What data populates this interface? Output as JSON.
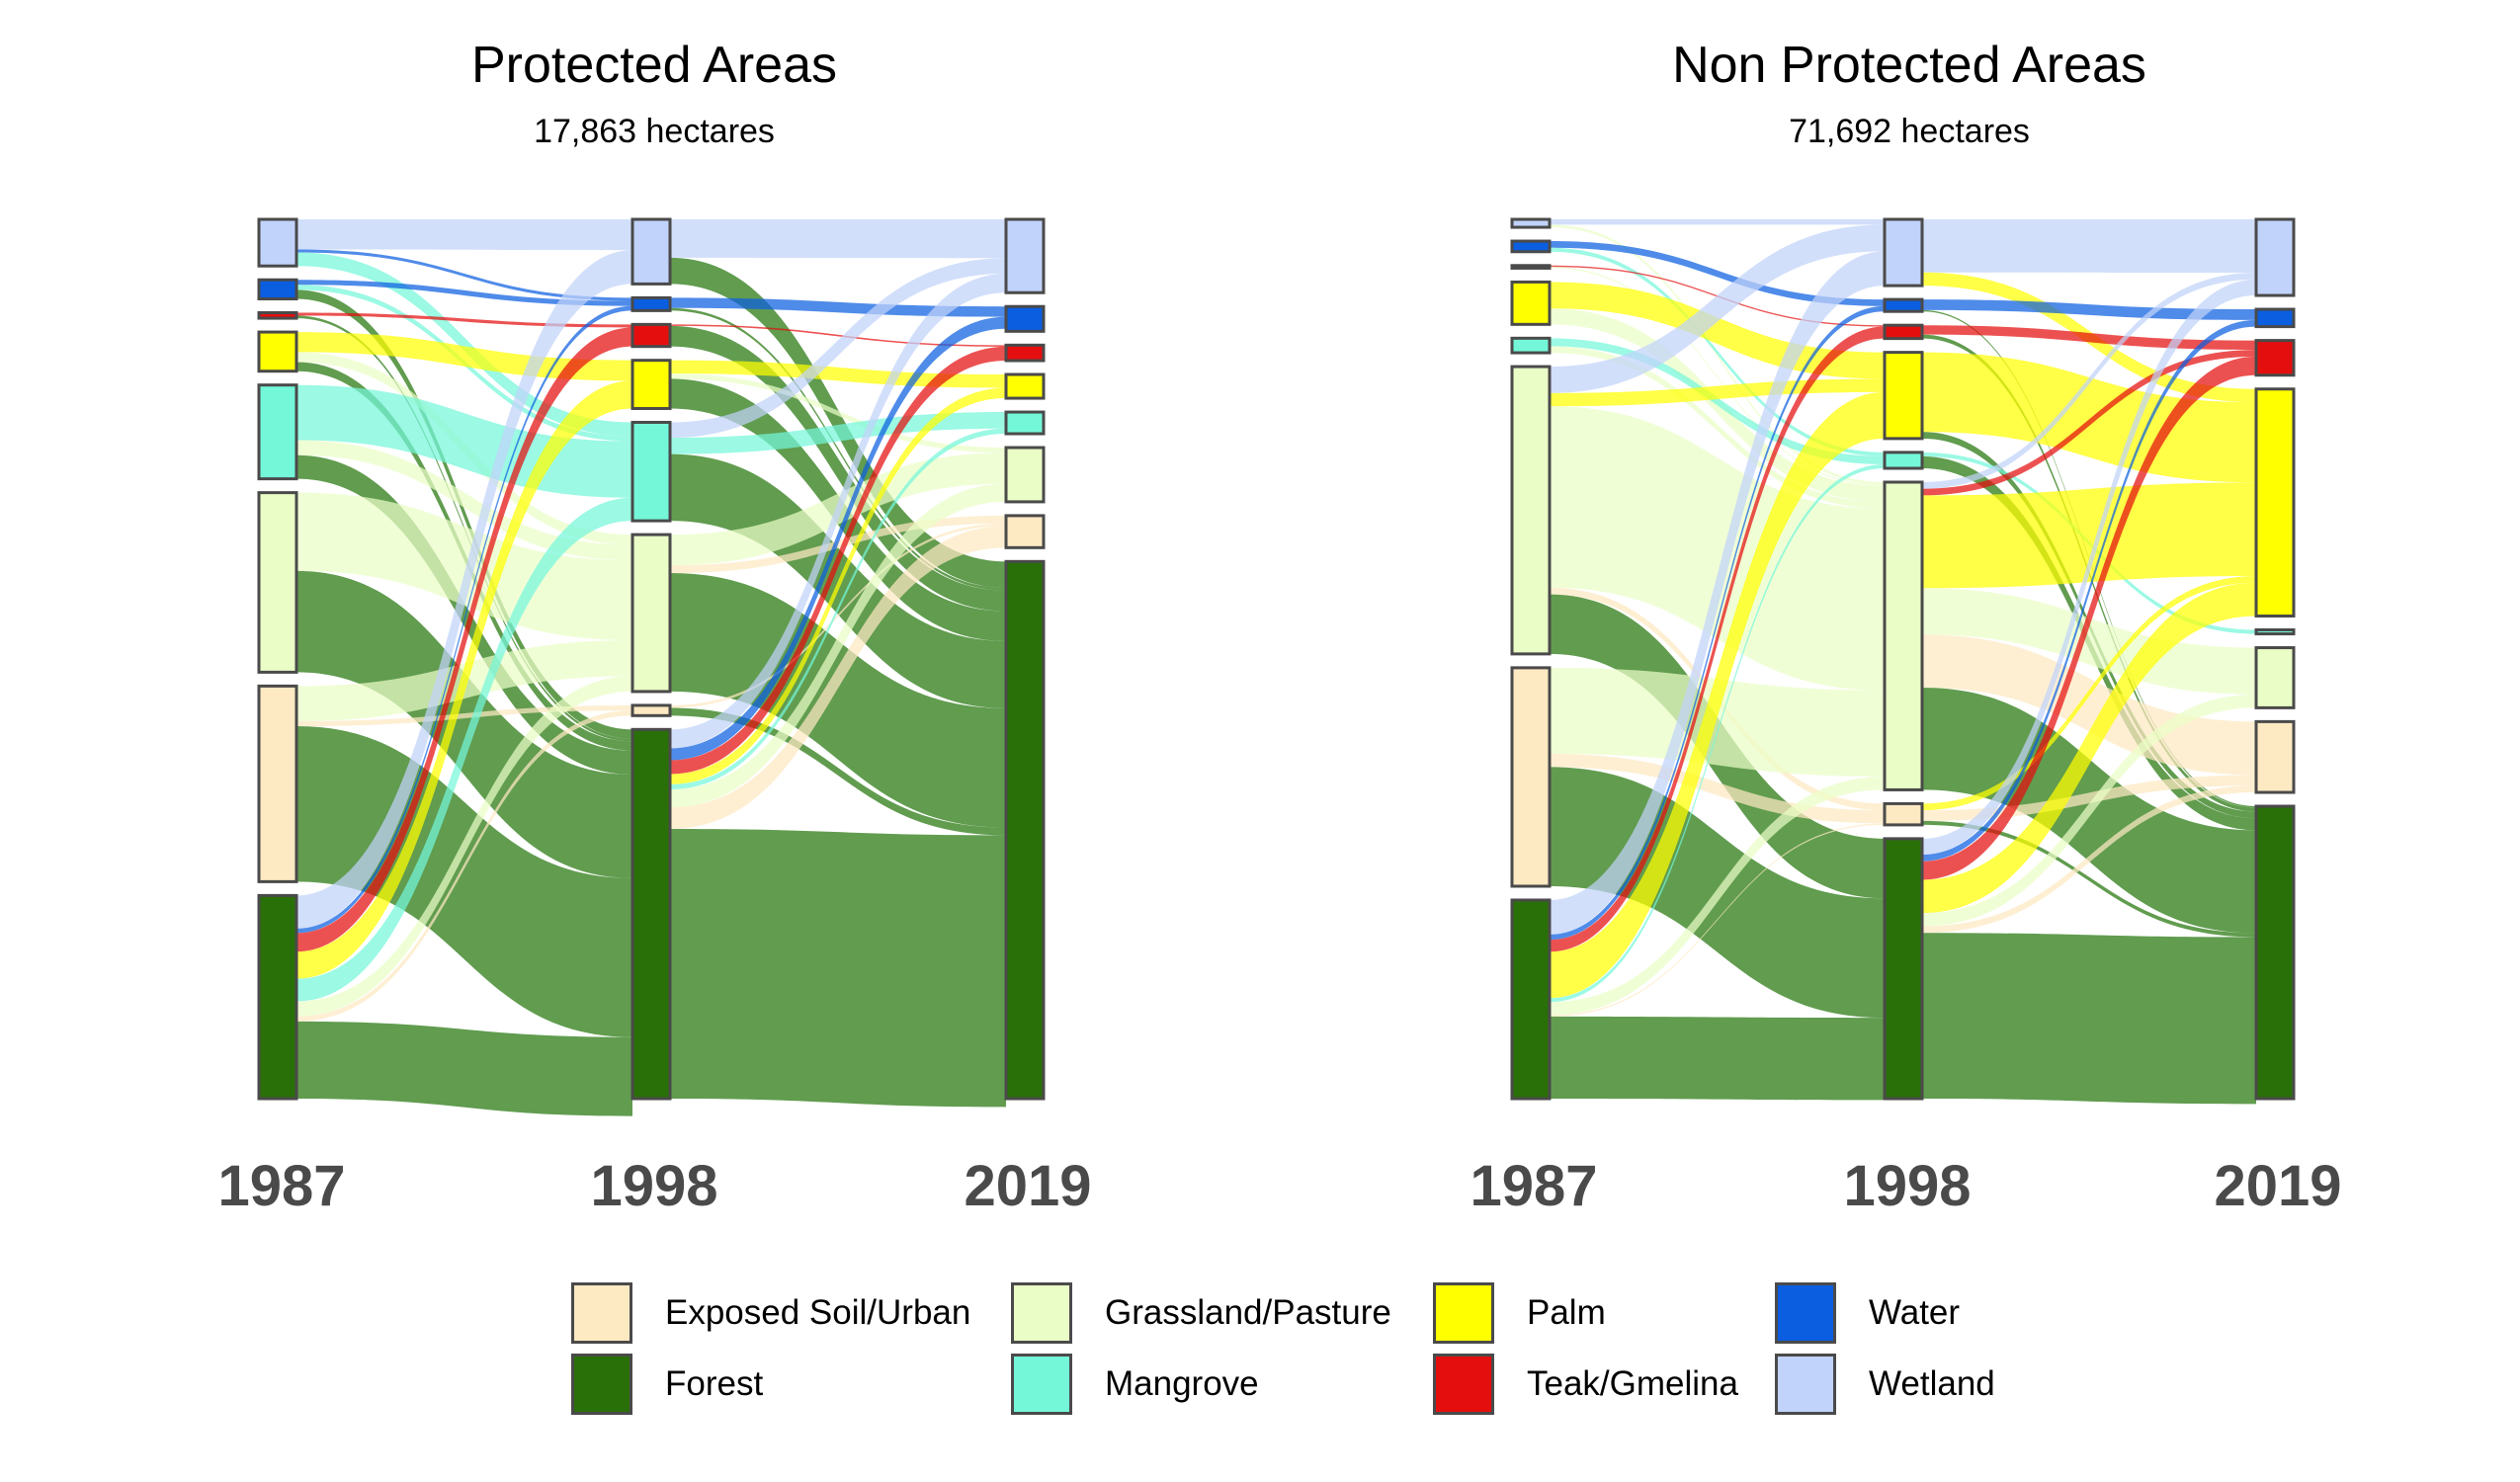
{
  "chart_data": [
    {
      "type": "sankey",
      "title": "Protected Areas",
      "subtitle": "17,863 hectares",
      "stages": [
        "1987",
        "1998",
        "2019"
      ],
      "node_order": [
        "Wetland",
        "Water",
        "Teak/Gmelina",
        "Palm",
        "Mangrove",
        "Grassland/Pasture",
        "Exposed Soil/Urban",
        "Forest"
      ],
      "stage_totals": {
        "1987": {
          "Wetland": 930,
          "Water": 380,
          "Teak/Gmelina": 110,
          "Palm": 780,
          "Mangrove": 1870,
          "Grassland/Pasture": 3580,
          "Exposed Soil/Urban": 3900,
          "Forest": 4050
        },
        "1998": {
          "Wetland": 1260,
          "Water": 250,
          "Teak/Gmelina": 430,
          "Palm": 940,
          "Mangrove": 1920,
          "Grassland/Pasture": 3060,
          "Exposed Soil/Urban": 200,
          "Forest": 7200
        },
        "2019": {
          "Wetland": 1420,
          "Water": 480,
          "Teak/Gmelina": 300,
          "Palm": 460,
          "Mangrove": 420,
          "Grassland/Pasture": 1050,
          "Exposed Soil/Urban": 620,
          "Forest": 10400
        }
      },
      "flows": [
        {
          "stage": 0,
          "from": "Wetland",
          "to": "Wetland",
          "value": 600
        },
        {
          "stage": 0,
          "from": "Wetland",
          "to": "Water",
          "value": 60
        },
        {
          "stage": 0,
          "from": "Wetland",
          "to": "Mangrove",
          "value": 270
        },
        {
          "stage": 0,
          "from": "Water",
          "to": "Water",
          "value": 100
        },
        {
          "stage": 0,
          "from": "Water",
          "to": "Mangrove",
          "value": 100
        },
        {
          "stage": 0,
          "from": "Water",
          "to": "Forest",
          "value": 180
        },
        {
          "stage": 0,
          "from": "Teak/Gmelina",
          "to": "Teak/Gmelina",
          "value": 60
        },
        {
          "stage": 0,
          "from": "Teak/Gmelina",
          "to": "Forest",
          "value": 50
        },
        {
          "stage": 0,
          "from": "Palm",
          "to": "Palm",
          "value": 400
        },
        {
          "stage": 0,
          "from": "Palm",
          "to": "Grassland/Pasture",
          "value": 200
        },
        {
          "stage": 0,
          "from": "Palm",
          "to": "Forest",
          "value": 180
        },
        {
          "stage": 0,
          "from": "Mangrove",
          "to": "Mangrove",
          "value": 1100
        },
        {
          "stage": 0,
          "from": "Mangrove",
          "to": "Grassland/Pasture",
          "value": 300
        },
        {
          "stage": 0,
          "from": "Mangrove",
          "to": "Forest",
          "value": 470
        },
        {
          "stage": 0,
          "from": "Grassland/Pasture",
          "to": "Grassland/Pasture",
          "value": 1560
        },
        {
          "stage": 0,
          "from": "Grassland/Pasture",
          "to": "Forest",
          "value": 2020
        },
        {
          "stage": 0,
          "from": "Exposed Soil/Urban",
          "to": "Grassland/Pasture",
          "value": 700
        },
        {
          "stage": 0,
          "from": "Exposed Soil/Urban",
          "to": "Exposed Soil/Urban",
          "value": 100
        },
        {
          "stage": 0,
          "from": "Exposed Soil/Urban",
          "to": "Forest",
          "value": 3100
        },
        {
          "stage": 0,
          "from": "Forest",
          "to": "Wetland",
          "value": 660
        },
        {
          "stage": 0,
          "from": "Forest",
          "to": "Water",
          "value": 90
        },
        {
          "stage": 0,
          "from": "Forest",
          "to": "Teak/Gmelina",
          "value": 370
        },
        {
          "stage": 0,
          "from": "Forest",
          "to": "Palm",
          "value": 540
        },
        {
          "stage": 0,
          "from": "Forest",
          "to": "Mangrove",
          "value": 450
        },
        {
          "stage": 0,
          "from": "Forest",
          "to": "Grassland/Pasture",
          "value": 300
        },
        {
          "stage": 0,
          "from": "Forest",
          "to": "Exposed Soil/Urban",
          "value": 100
        },
        {
          "stage": 0,
          "from": "Forest",
          "to": "Forest",
          "value": 1540
        },
        {
          "stage": 1,
          "from": "Wetland",
          "to": "Wetland",
          "value": 750
        },
        {
          "stage": 1,
          "from": "Wetland",
          "to": "Forest",
          "value": 510
        },
        {
          "stage": 1,
          "from": "Water",
          "to": "Water",
          "value": 200
        },
        {
          "stage": 1,
          "from": "Water",
          "to": "Forest",
          "value": 50
        },
        {
          "stage": 1,
          "from": "Teak/Gmelina",
          "to": "Teak/Gmelina",
          "value": 30
        },
        {
          "stage": 1,
          "from": "Teak/Gmelina",
          "to": "Forest",
          "value": 400
        },
        {
          "stage": 1,
          "from": "Palm",
          "to": "Palm",
          "value": 260
        },
        {
          "stage": 1,
          "from": "Palm",
          "to": "Grassland/Pasture",
          "value": 100
        },
        {
          "stage": 1,
          "from": "Palm",
          "to": "Forest",
          "value": 580
        },
        {
          "stage": 1,
          "from": "Mangrove",
          "to": "Wetland",
          "value": 300
        },
        {
          "stage": 1,
          "from": "Mangrove",
          "to": "Mangrove",
          "value": 320
        },
        {
          "stage": 1,
          "from": "Mangrove",
          "to": "Forest",
          "value": 1300
        },
        {
          "stage": 1,
          "from": "Grassland/Pasture",
          "to": "Grassland/Pasture",
          "value": 600
        },
        {
          "stage": 1,
          "from": "Grassland/Pasture",
          "to": "Exposed Soil/Urban",
          "value": 150
        },
        {
          "stage": 1,
          "from": "Grassland/Pasture",
          "to": "Forest",
          "value": 2310
        },
        {
          "stage": 1,
          "from": "Exposed Soil/Urban",
          "to": "Exposed Soil/Urban",
          "value": 50
        },
        {
          "stage": 1,
          "from": "Exposed Soil/Urban",
          "to": "Forest",
          "value": 150
        },
        {
          "stage": 1,
          "from": "Forest",
          "to": "Wetland",
          "value": 370
        },
        {
          "stage": 1,
          "from": "Forest",
          "to": "Water",
          "value": 230
        },
        {
          "stage": 1,
          "from": "Forest",
          "to": "Teak/Gmelina",
          "value": 270
        },
        {
          "stage": 1,
          "from": "Forest",
          "to": "Palm",
          "value": 200
        },
        {
          "stage": 1,
          "from": "Forest",
          "to": "Mangrove",
          "value": 100
        },
        {
          "stage": 1,
          "from": "Forest",
          "to": "Grassland/Pasture",
          "value": 350
        },
        {
          "stage": 1,
          "from": "Forest",
          "to": "Exposed Soil/Urban",
          "value": 420
        },
        {
          "stage": 1,
          "from": "Forest",
          "to": "Forest",
          "value": 5260
        }
      ]
    },
    {
      "type": "sankey",
      "title": "Non Protected Areas",
      "subtitle": "71,692 hectares",
      "stages": [
        "1987",
        "1998",
        "2019"
      ],
      "node_order": [
        "Wetland",
        "Water",
        "Teak/Gmelina",
        "Palm",
        "Mangrove",
        "Grassland/Pasture",
        "Exposed Soil/Urban",
        "Forest"
      ],
      "stage_totals": {
        "1987": {
          "Wetland": 600,
          "Water": 800,
          "Teak/Gmelina": 200,
          "Palm": 3200,
          "Mangrove": 1100,
          "Grassland/Pasture": 21700,
          "Exposed Soil/Urban": 16500,
          "Forest": 15000
        },
        "1998": {
          "Wetland": 5000,
          "Water": 900,
          "Teak/Gmelina": 1000,
          "Palm": 6500,
          "Mangrove": 1200,
          "Grassland/Pasture": 23200,
          "Exposed Soil/Urban": 1600,
          "Forest": 19600
        },
        "2019": {
          "Wetland": 5700,
          "Water": 1300,
          "Teak/Gmelina": 2600,
          "Palm": 17000,
          "Mangrove": 300,
          "Grassland/Pasture": 4500,
          "Exposed Soil/Urban": 5300,
          "Forest": 21900
        }
      },
      "flows": [
        {
          "stage": 0,
          "from": "Wetland",
          "to": "Wetland",
          "value": 400
        },
        {
          "stage": 0,
          "from": "Wetland",
          "to": "Grassland/Pasture",
          "value": 200
        },
        {
          "stage": 0,
          "from": "Water",
          "to": "Water",
          "value": 500
        },
        {
          "stage": 0,
          "from": "Water",
          "to": "Mangrove",
          "value": 300
        },
        {
          "stage": 0,
          "from": "Teak/Gmelina",
          "to": "Teak/Gmelina",
          "value": 100
        },
        {
          "stage": 0,
          "from": "Teak/Gmelina",
          "to": "Grassland/Pasture",
          "value": 100
        },
        {
          "stage": 0,
          "from": "Palm",
          "to": "Palm",
          "value": 2000
        },
        {
          "stage": 0,
          "from": "Palm",
          "to": "Grassland/Pasture",
          "value": 1200
        },
        {
          "stage": 0,
          "from": "Mangrove",
          "to": "Mangrove",
          "value": 600
        },
        {
          "stage": 0,
          "from": "Mangrove",
          "to": "Grassland/Pasture",
          "value": 500
        },
        {
          "stage": 0,
          "from": "Grassland/Pasture",
          "to": "Wetland",
          "value": 2000
        },
        {
          "stage": 0,
          "from": "Grassland/Pasture",
          "to": "Palm",
          "value": 1000
        },
        {
          "stage": 0,
          "from": "Grassland/Pasture",
          "to": "Grassland/Pasture",
          "value": 13700
        },
        {
          "stage": 0,
          "from": "Grassland/Pasture",
          "to": "Exposed Soil/Urban",
          "value": 500
        },
        {
          "stage": 0,
          "from": "Grassland/Pasture",
          "to": "Forest",
          "value": 4500
        },
        {
          "stage": 0,
          "from": "Exposed Soil/Urban",
          "to": "Grassland/Pasture",
          "value": 6500
        },
        {
          "stage": 0,
          "from": "Exposed Soil/Urban",
          "to": "Exposed Soil/Urban",
          "value": 1000
        },
        {
          "stage": 0,
          "from": "Exposed Soil/Urban",
          "to": "Forest",
          "value": 9000
        },
        {
          "stage": 0,
          "from": "Forest",
          "to": "Wetland",
          "value": 2600
        },
        {
          "stage": 0,
          "from": "Forest",
          "to": "Water",
          "value": 400
        },
        {
          "stage": 0,
          "from": "Forest",
          "to": "Teak/Gmelina",
          "value": 900
        },
        {
          "stage": 0,
          "from": "Forest",
          "to": "Palm",
          "value": 3500
        },
        {
          "stage": 0,
          "from": "Forest",
          "to": "Mangrove",
          "value": 300
        },
        {
          "stage": 0,
          "from": "Forest",
          "to": "Grassland/Pasture",
          "value": 1000
        },
        {
          "stage": 0,
          "from": "Forest",
          "to": "Exposed Soil/Urban",
          "value": 100
        },
        {
          "stage": 0,
          "from": "Forest",
          "to": "Forest",
          "value": 6200
        },
        {
          "stage": 1,
          "from": "Wetland",
          "to": "Wetland",
          "value": 4000
        },
        {
          "stage": 1,
          "from": "Wetland",
          "to": "Palm",
          "value": 1000
        },
        {
          "stage": 1,
          "from": "Water",
          "to": "Water",
          "value": 800
        },
        {
          "stage": 1,
          "from": "Water",
          "to": "Forest",
          "value": 100
        },
        {
          "stage": 1,
          "from": "Teak/Gmelina",
          "to": "Teak/Gmelina",
          "value": 700
        },
        {
          "stage": 1,
          "from": "Teak/Gmelina",
          "to": "Forest",
          "value": 300
        },
        {
          "stage": 1,
          "from": "Palm",
          "to": "Palm",
          "value": 6000
        },
        {
          "stage": 1,
          "from": "Palm",
          "to": "Forest",
          "value": 500
        },
        {
          "stage": 1,
          "from": "Mangrove",
          "to": "Mangrove",
          "value": 300
        },
        {
          "stage": 1,
          "from": "Mangrove",
          "to": "Forest",
          "value": 900
        },
        {
          "stage": 1,
          "from": "Grassland/Pasture",
          "to": "Wetland",
          "value": 500
        },
        {
          "stage": 1,
          "from": "Grassland/Pasture",
          "to": "Teak/Gmelina",
          "value": 500
        },
        {
          "stage": 1,
          "from": "Grassland/Pasture",
          "to": "Palm",
          "value": 7000
        },
        {
          "stage": 1,
          "from": "Grassland/Pasture",
          "to": "Grassland/Pasture",
          "value": 3500
        },
        {
          "stage": 1,
          "from": "Grassland/Pasture",
          "to": "Exposed Soil/Urban",
          "value": 4000
        },
        {
          "stage": 1,
          "from": "Grassland/Pasture",
          "to": "Forest",
          "value": 7700
        },
        {
          "stage": 1,
          "from": "Exposed Soil/Urban",
          "to": "Palm",
          "value": 500
        },
        {
          "stage": 1,
          "from": "Exposed Soil/Urban",
          "to": "Exposed Soil/Urban",
          "value": 800
        },
        {
          "stage": 1,
          "from": "Exposed Soil/Urban",
          "to": "Forest",
          "value": 300
        },
        {
          "stage": 1,
          "from": "Forest",
          "to": "Wetland",
          "value": 1200
        },
        {
          "stage": 1,
          "from": "Forest",
          "to": "Water",
          "value": 500
        },
        {
          "stage": 1,
          "from": "Forest",
          "to": "Teak/Gmelina",
          "value": 1400
        },
        {
          "stage": 1,
          "from": "Forest",
          "to": "Palm",
          "value": 2500
        },
        {
          "stage": 1,
          "from": "Forest",
          "to": "Grassland/Pasture",
          "value": 1000
        },
        {
          "stage": 1,
          "from": "Forest",
          "to": "Exposed Soil/Urban",
          "value": 500
        },
        {
          "stage": 1,
          "from": "Forest",
          "to": "Forest",
          "value": 12500
        }
      ]
    }
  ],
  "legend": [
    {
      "label": "Exposed Soil/Urban",
      "color": "#fde9c2"
    },
    {
      "label": "Forest",
      "color": "#2a7008"
    },
    {
      "label": "Grassland/Pasture",
      "color": "#eafdc6"
    },
    {
      "label": "Mangrove",
      "color": "#74f7d9"
    },
    {
      "label": "Palm",
      "color": "#ffff00"
    },
    {
      "label": "Teak/Gmelina",
      "color": "#e50e0e"
    },
    {
      "label": "Water",
      "color": "#0b5ee0"
    },
    {
      "label": "Wetland",
      "color": "#c1d3fa"
    }
  ]
}
